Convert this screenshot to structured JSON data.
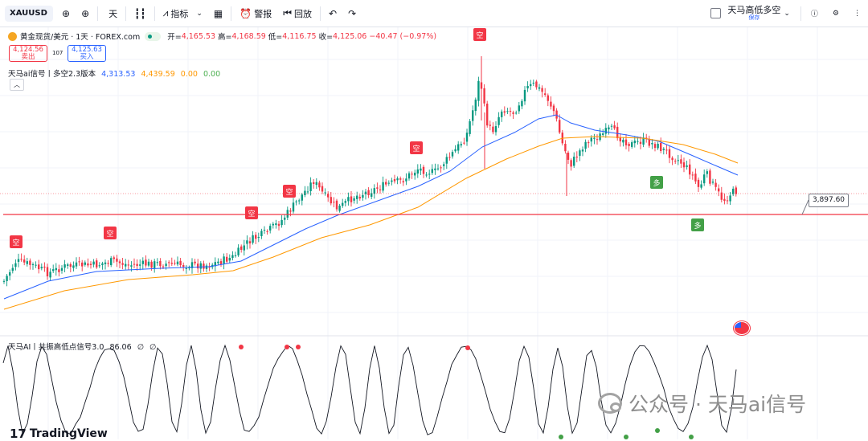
{
  "toolbar": {
    "symbol": "XAUUSD",
    "timeframe": "天",
    "indicators_label": "指标",
    "alert_label": "警报",
    "replay_label": "回放",
    "layout_name": "天马高低多空",
    "layout_status": "保存"
  },
  "legend": {
    "title": "黄金现货/美元 · 1天 · FOREX.com",
    "open_key": "开=",
    "open": "4,165.53",
    "high_key": "高=",
    "high": "4,168.59",
    "low_key": "低=",
    "low": "4,116.75",
    "close_key": "收=",
    "close": "4,125.06",
    "change": "−40.47 (−0.97%)"
  },
  "trade": {
    "sell_price": "4,124.56",
    "sell_label": "卖出",
    "spread": "107",
    "buy_price": "4,125.63",
    "buy_label": "买入"
  },
  "indicator1": {
    "name": "天马ai信号丨多空2.3版本",
    "v1": "4,313.53",
    "v2": "4,439.59",
    "v3": "0.00",
    "v4": "0.00"
  },
  "indicator2": {
    "name": "天马AI丨共振高低点信号3.0",
    "value": "86.06",
    "icon1": "∅",
    "icon2": "∅"
  },
  "price_line_label": "3,897.60",
  "signals": {
    "short_label": "空",
    "long_label": "多"
  },
  "footer": {
    "brand": "TradingView",
    "watermark": "公众号 · 天马ai信号"
  },
  "colors": {
    "up": "#089981",
    "down": "#f23645",
    "ma_fast": "#2962ff",
    "ma_slow": "#ff9800",
    "long_signal": "#43a047",
    "short_signal": "#f23645"
  },
  "icons": [
    "plus-icon",
    "candle-type-icon",
    "indicators-icon",
    "templates-icon",
    "alert-icon",
    "replay-icon",
    "undo-icon",
    "redo-icon",
    "snapshot-icon",
    "flag-usa-icon"
  ]
}
